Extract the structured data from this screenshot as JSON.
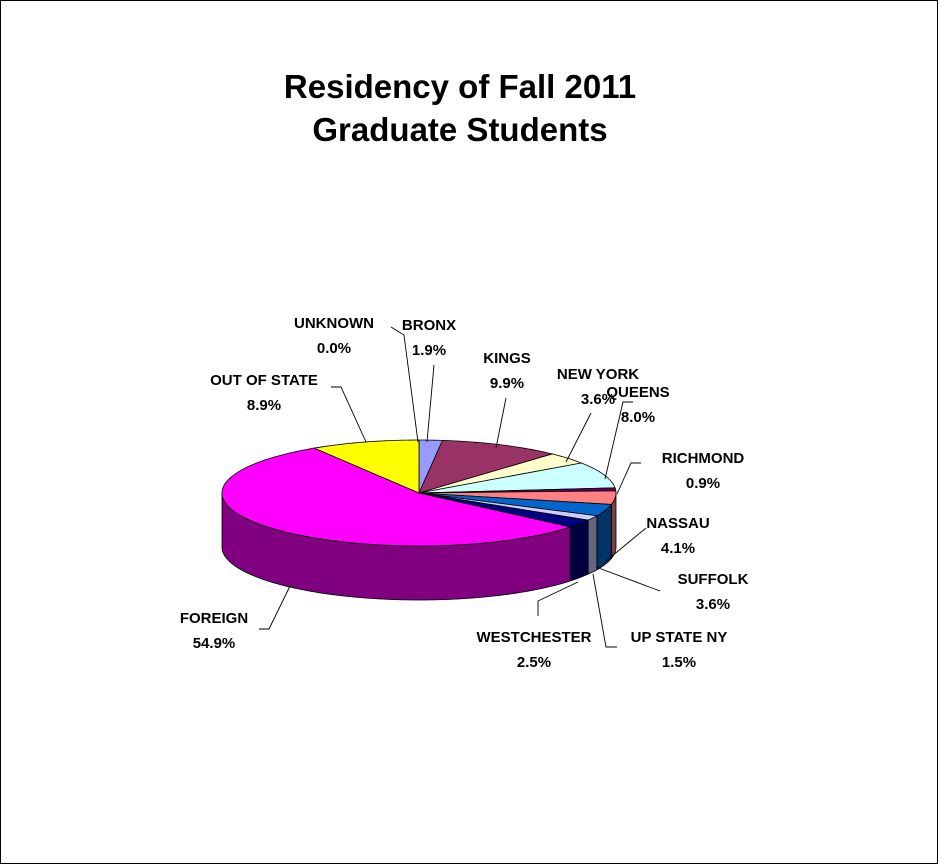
{
  "chart_data": {
    "type": "pie",
    "title": [
      "Residency of Fall 2011",
      "Graduate Students"
    ],
    "slices": [
      {
        "label": "BRONX",
        "pct_label": "1.9%",
        "value": 1.9,
        "color": "#9999ff"
      },
      {
        "label": "KINGS",
        "pct_label": "9.9%",
        "value": 9.9,
        "color": "#993366"
      },
      {
        "label": "NEW YORK",
        "pct_label": "3.6%",
        "value": 3.6,
        "color": "#ffffcc"
      },
      {
        "label": "QUEENS",
        "pct_label": "8.0%",
        "value": 8.0,
        "color": "#ccffff"
      },
      {
        "label": "RICHMOND",
        "pct_label": "0.9%",
        "value": 0.9,
        "color": "#660066"
      },
      {
        "label": "NASSAU",
        "pct_label": "4.1%",
        "value": 4.1,
        "color": "#ff8080"
      },
      {
        "label": "SUFFOLK",
        "pct_label": "3.6%",
        "value": 3.6,
        "color": "#0066cc"
      },
      {
        "label": "UP STATE NY",
        "pct_label": "1.5%",
        "value": 1.5,
        "color": "#ccccff"
      },
      {
        "label": "WESTCHESTER",
        "pct_label": "2.5%",
        "value": 2.5,
        "color": "#000080"
      },
      {
        "label": "FOREIGN",
        "pct_label": "54.9%",
        "value": 54.9,
        "color": "#ff00ff"
      },
      {
        "label": "OUT OF STATE",
        "pct_label": "8.9%",
        "value": 8.9,
        "color": "#ffff00"
      },
      {
        "label": "UNKNOWN",
        "pct_label": "0.0%",
        "value": 0.0,
        "color": "#00ffff"
      }
    ]
  }
}
